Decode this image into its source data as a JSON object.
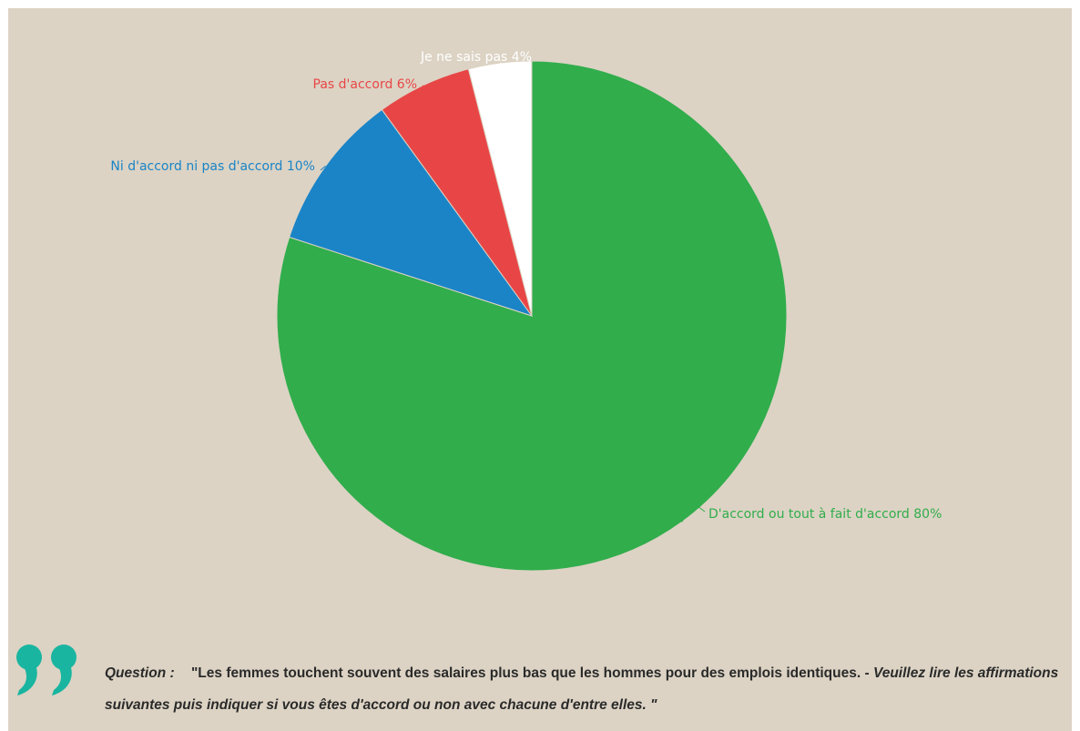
{
  "chart_data": {
    "type": "pie",
    "slices": [
      {
        "label": "D'accord ou tout à fait d'accord 80%",
        "value": 80,
        "color": "#31ad4c",
        "label_color": "#31ad4c"
      },
      {
        "label": "Ni d'accord ni pas d'accord 10%",
        "value": 10,
        "color": "#1a84c7",
        "label_color": "#1a84c7"
      },
      {
        "label": "Pas d'accord 6%",
        "value": 6,
        "color": "#e84646",
        "label_color": "#e84646"
      },
      {
        "label": "Je ne sais pas 4%",
        "value": 4,
        "color": "#ffffff",
        "label_color": "#ffffff"
      }
    ],
    "start_angle_deg": 0,
    "direction": "clockwise"
  },
  "question": {
    "label": "Question :",
    "text_main": "\"Les femmes touchent souvent des salaires plus bas que les hommes pour des emplois identiques. -",
    "text_italic": "Veuillez lire les affirmations suivantes puis indiquer si vous êtes d'accord ou non avec chacune d'entre elles. \""
  },
  "colors": {
    "background": "#dcd3c4",
    "quote_mark": "#19b5a0"
  },
  "icons": {
    "quote": "closing-quote-icon"
  }
}
